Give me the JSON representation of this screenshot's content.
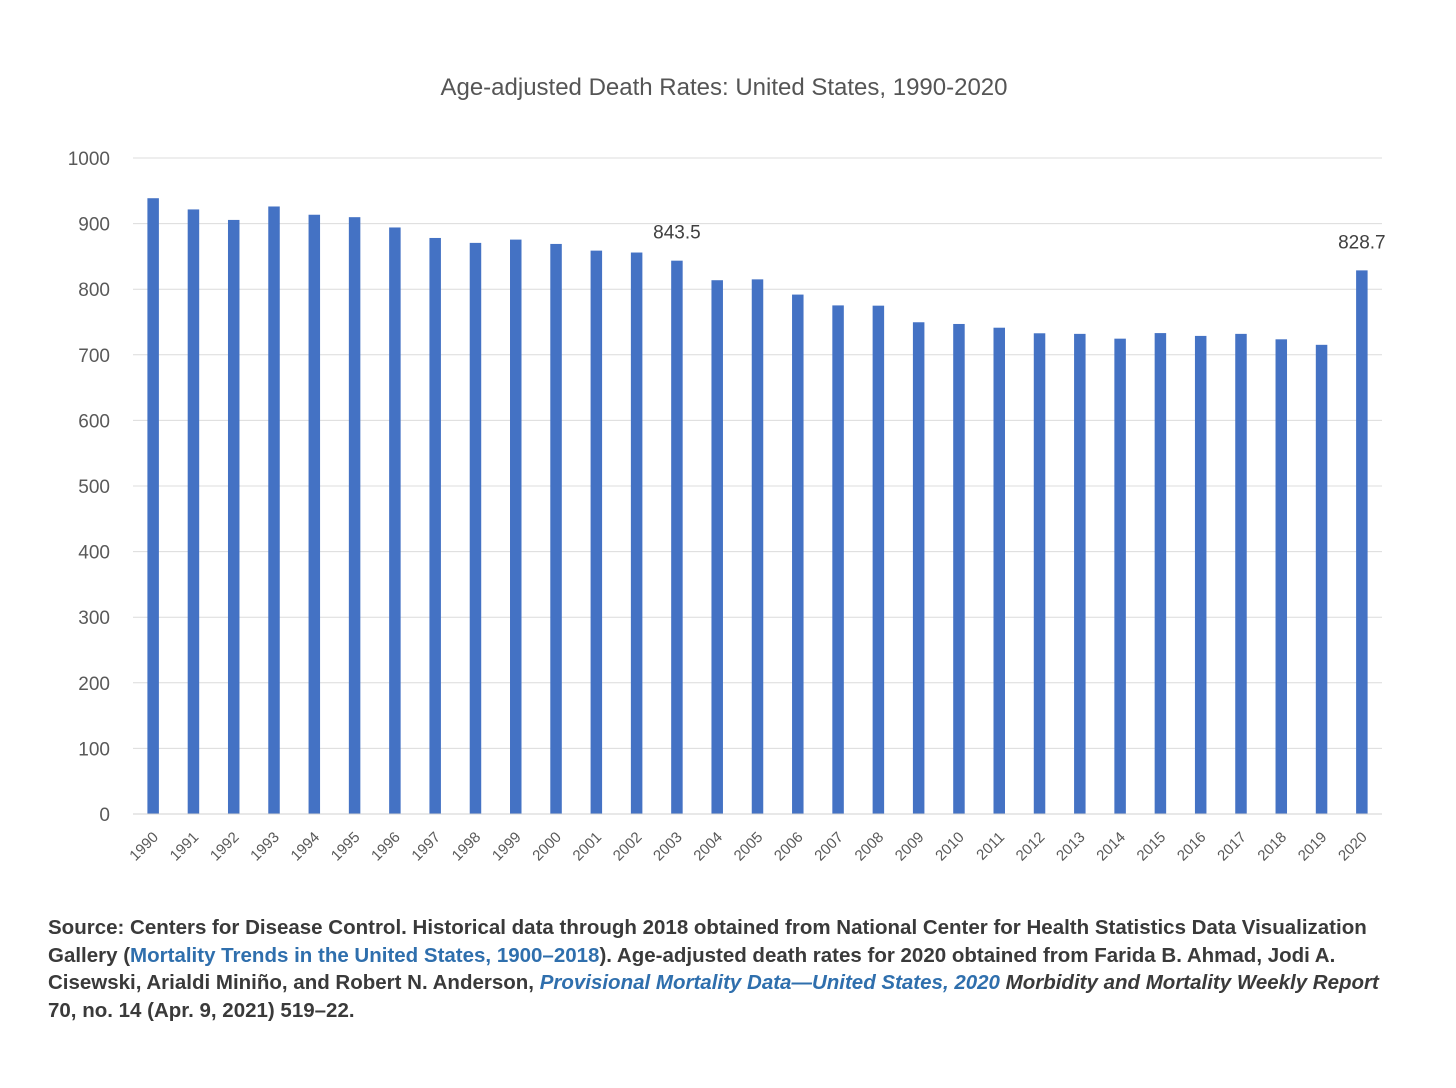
{
  "chart_data": {
    "type": "bar",
    "title": "Age-adjusted Death Rates: United States, 1990-2020",
    "xlabel": "",
    "ylabel": "",
    "ylim": [
      0,
      1000
    ],
    "yticks": [
      "0",
      "100",
      "200",
      "300",
      "400",
      "500",
      "600",
      "700",
      "800",
      "900",
      "1000"
    ],
    "grid": true,
    "bar_color": "#4472c4",
    "categories": [
      "1990",
      "1991",
      "1992",
      "1993",
      "1994",
      "1995",
      "1996",
      "1997",
      "1998",
      "1999",
      "2000",
      "2001",
      "2002",
      "2003",
      "2004",
      "2005",
      "2006",
      "2007",
      "2008",
      "2009",
      "2010",
      "2011",
      "2012",
      "2013",
      "2014",
      "2015",
      "2016",
      "2017",
      "2018",
      "2019",
      "2020"
    ],
    "values": [
      938.7,
      921.6,
      905.6,
      926.1,
      913.5,
      909.8,
      894.1,
      878.1,
      870.6,
      875.6,
      869.0,
      858.8,
      855.9,
      843.5,
      813.7,
      815.0,
      791.8,
      775.3,
      774.9,
      749.6,
      747.0,
      741.3,
      732.8,
      731.9,
      724.6,
      733.1,
      728.8,
      731.9,
      723.6,
      715.2,
      828.7
    ],
    "data_labels": [
      {
        "category": "2003",
        "text": "843.5"
      },
      {
        "category": "2020",
        "text": "828.7"
      }
    ]
  },
  "source": {
    "part1": "Source: Centers for Disease Control. Historical data through 2018 obtained from National Center for Health Statistics Data Visualization Gallery (",
    "link1": "Mortality Trends in the United States, 1900–2018",
    "part2": "). Age-adjusted death rates for 2020 obtained from Farida B. Ahmad, Jodi A. Cisewski, Arialdi Miniño, and Robert N. Anderson, ",
    "link2": "Provisional Mortality Data—United States, 2020",
    "part3": " ",
    "journal": "Morbidity and Mortality Weekly Report",
    "part4": " 70, no. 14 (Apr. 9, 2021) 519–22.",
    "link_color": "#2f6fad"
  }
}
